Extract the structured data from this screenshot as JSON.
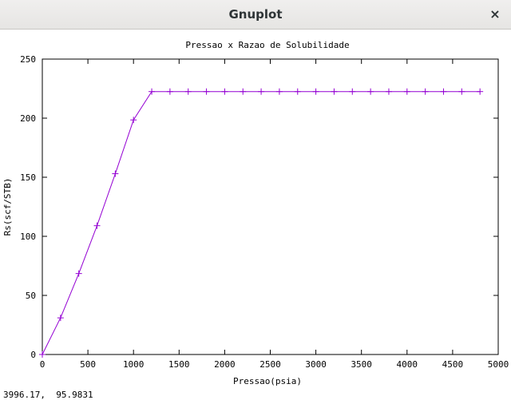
{
  "window": {
    "title": "Gnuplot",
    "close_icon": "×"
  },
  "status_bar": {
    "coordinates": "3996.17,  95.9831"
  },
  "colors": {
    "series": "#9400d3",
    "axes": "#000000"
  },
  "chart_data": {
    "type": "line",
    "title": "Pressao x Razao de Solubilidade",
    "xlabel": "Pressao(psia)",
    "ylabel": "Rs(scf/STB)",
    "xlim": [
      0,
      5000
    ],
    "ylim": [
      0,
      250
    ],
    "xticks": [
      0,
      500,
      1000,
      1500,
      2000,
      2500,
      3000,
      3500,
      4000,
      4500,
      5000
    ],
    "yticks": [
      0,
      50,
      100,
      150,
      200,
      250
    ],
    "grid": false,
    "legend": "none",
    "marker": "plus",
    "series": [
      {
        "x": [
          0,
          200,
          400,
          600,
          800,
          1000,
          1200,
          1400,
          1600,
          1800,
          2000,
          2200,
          2400,
          2600,
          2800,
          3000,
          3200,
          3400,
          3600,
          3800,
          4000,
          4200,
          4400,
          4600,
          4800
        ],
        "y": [
          0,
          31,
          68.5,
          109,
          153,
          198.5,
          222.5,
          222.5,
          222.5,
          222.5,
          222.5,
          222.5,
          222.5,
          222.5,
          222.5,
          222.5,
          222.5,
          222.5,
          222.5,
          222.5,
          222.5,
          222.5,
          222.5,
          222.5,
          222.5
        ]
      }
    ]
  }
}
